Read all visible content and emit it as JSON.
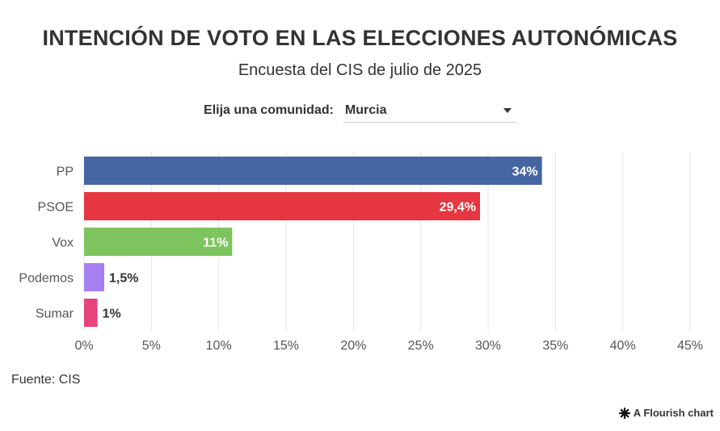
{
  "header": {
    "title": "INTENCIÓN DE VOTO EN LAS ELECCIONES AUTONÓMICAS",
    "subtitle": "Encuesta del CIS de julio de 2025"
  },
  "filter": {
    "label": "Elija una comunidad:",
    "selected": "Murcia"
  },
  "chart_data": {
    "type": "bar",
    "orientation": "horizontal",
    "title": "INTENCIÓN DE VOTO EN LAS ELECCIONES AUTONÓMICAS",
    "subtitle": "Encuesta del CIS de julio de 2025",
    "categories": [
      "PP",
      "PSOE",
      "Vox",
      "Podemos",
      "Sumar"
    ],
    "values": [
      34,
      29.4,
      11,
      1.5,
      1
    ],
    "value_labels": [
      "34%",
      "29,4%",
      "11%",
      "1,5%",
      "1%"
    ],
    "colors": [
      "#4565a3",
      "#e63641",
      "#7dc45e",
      "#a680f0",
      "#e8437a"
    ],
    "xlim": [
      0,
      45
    ],
    "x_ticks": [
      0,
      5,
      10,
      15,
      20,
      25,
      30,
      35,
      40,
      45
    ],
    "x_tick_labels": [
      "0%",
      "5%",
      "10%",
      "15%",
      "20%",
      "25%",
      "30%",
      "35%",
      "40%",
      "45%"
    ],
    "xlabel": "",
    "ylabel": "",
    "grid": true
  },
  "footer": {
    "source": "Fuente: CIS",
    "credit": "A Flourish chart",
    "credit_icon": "flourish-asterisk-icon"
  }
}
